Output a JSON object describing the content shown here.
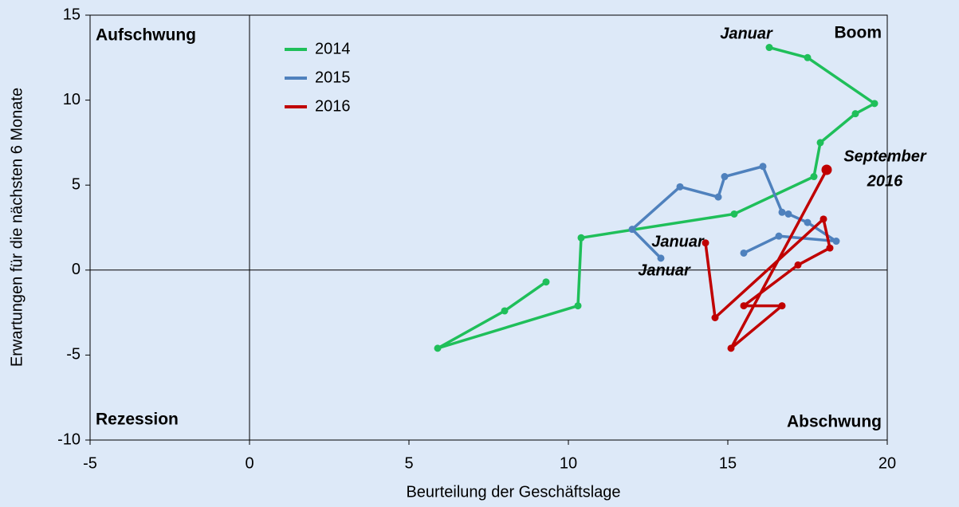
{
  "chart_data": {
    "type": "line",
    "xlabel": "Beurteilung der Geschäftslage",
    "ylabel": "Erwartungen für die nächsten 6 Monate",
    "xlim": [
      -5,
      20
    ],
    "xticks": [
      -5,
      0,
      5,
      10,
      15,
      20
    ],
    "ylim": [
      -10,
      15
    ],
    "yticks": [
      -10,
      -5,
      0,
      5,
      10,
      15
    ],
    "grid": false,
    "legend": "upper left",
    "quadrant_labels": [
      "Aufschwung",
      "Boom",
      "Rezession",
      "Abschwung"
    ],
    "annotations": [
      {
        "text": "Januar",
        "color": "#1fbf5a"
      },
      {
        "text": "Januar",
        "color": "#4f81bd"
      },
      {
        "text": "Januar",
        "color": "#c00000"
      },
      {
        "text": [
          "September",
          "2016"
        ],
        "color": "#c00000"
      }
    ],
    "series": [
      {
        "name": "2014",
        "color": "#1fbf5a",
        "x": [
          16.3,
          17.5,
          19.6,
          19.0,
          17.9,
          17.7,
          15.2,
          10.4,
          10.3,
          5.9,
          8.0,
          9.3
        ],
        "values": [
          13.1,
          12.5,
          9.8,
          9.2,
          7.5,
          5.5,
          3.3,
          1.9,
          -2.1,
          -4.6,
          -2.4,
          -0.7
        ]
      },
      {
        "name": "2015",
        "color": "#4f81bd",
        "x": [
          12.9,
          12.0,
          13.5,
          14.7,
          14.9,
          16.1,
          16.7,
          16.9,
          17.5,
          18.4,
          16.6,
          15.5
        ],
        "values": [
          0.7,
          2.4,
          4.9,
          4.3,
          5.5,
          6.1,
          3.4,
          3.3,
          2.8,
          1.7,
          2.0,
          1.0
        ]
      },
      {
        "name": "2016",
        "color": "#c00000",
        "x": [
          14.3,
          14.6,
          18.0,
          18.2,
          17.2,
          15.5,
          16.7,
          15.1,
          18.1
        ],
        "values": [
          1.6,
          -2.8,
          3.0,
          1.3,
          0.3,
          -2.1,
          -2.1,
          -4.6,
          5.9
        ]
      }
    ]
  }
}
